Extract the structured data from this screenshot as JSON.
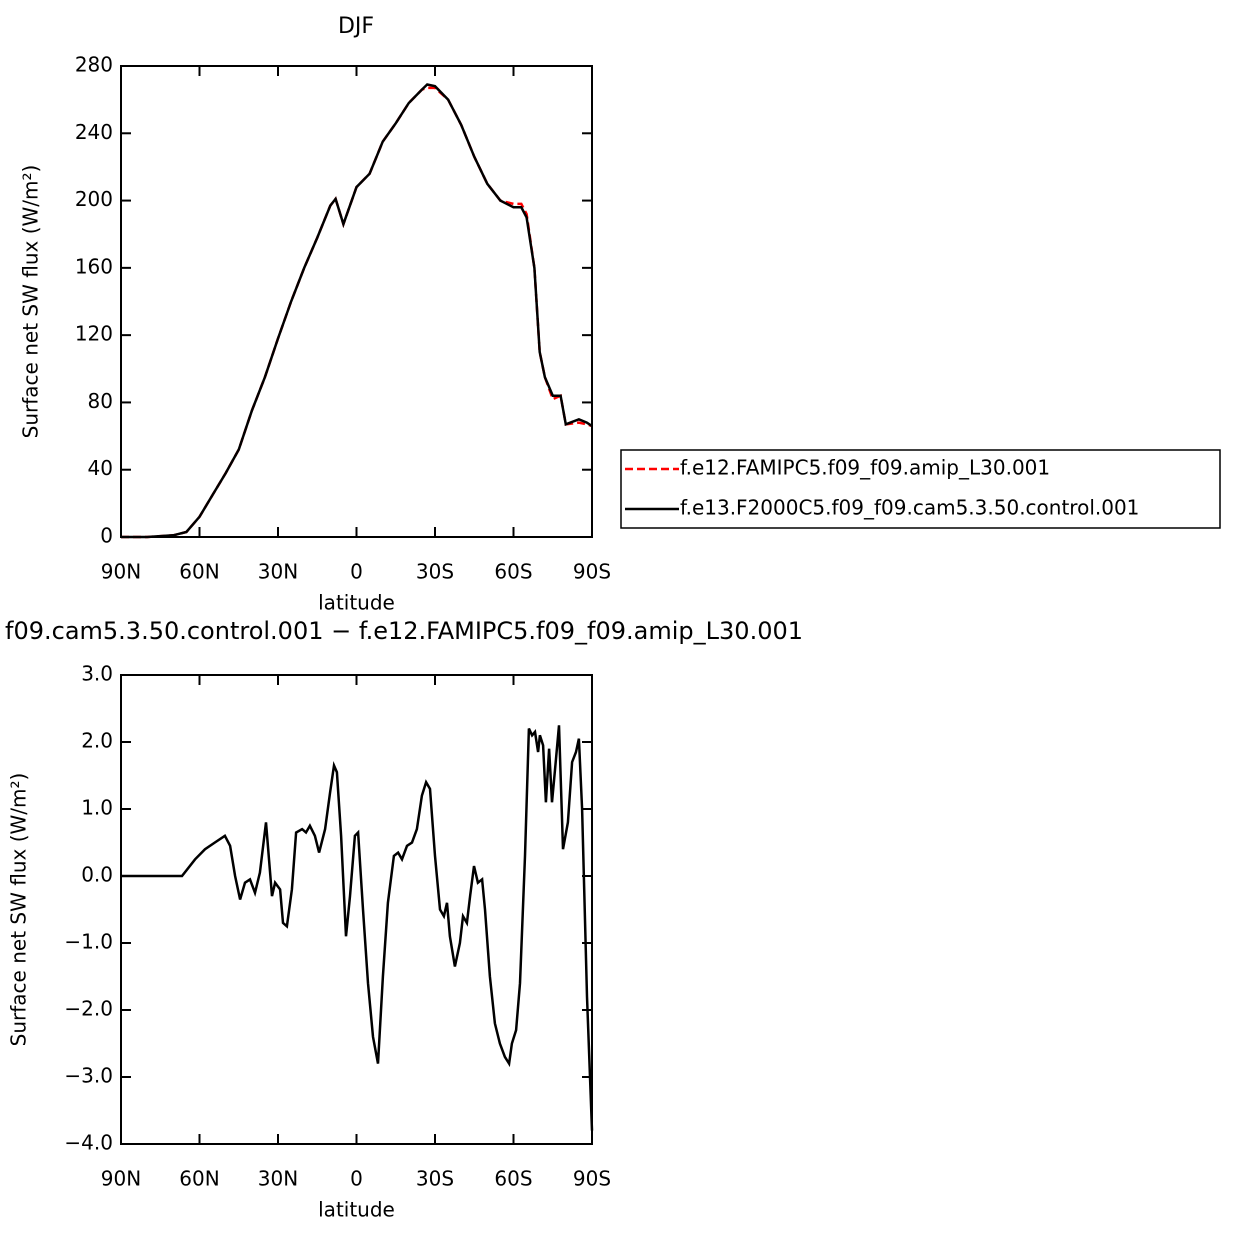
{
  "chart_data": [
    {
      "type": "line",
      "title": "DJF",
      "x_label": "latitude",
      "y_label": "Surface net SW flux (W/m²)",
      "x": [
        90,
        80,
        70,
        65,
        60,
        55,
        50,
        45,
        40,
        35,
        30,
        25,
        20,
        15,
        10,
        8,
        5,
        0,
        -5,
        -10,
        -15,
        -20,
        -25,
        -27,
        -30,
        -35,
        -40,
        -45,
        -50,
        -55,
        -60,
        -63,
        -65,
        -68,
        -70,
        -72,
        -75,
        -78,
        -80,
        -85,
        -88,
        -90
      ],
      "series": [
        {
          "name": "f.e12.FAMIPC5.f09_f09.amip_L30.001",
          "color": "#ff0000",
          "style": "dashed",
          "values": [
            0,
            0,
            1,
            3,
            12,
            25,
            38,
            52,
            75,
            95,
            118,
            140,
            160,
            178,
            197,
            201,
            186,
            208,
            216,
            235,
            246,
            258,
            266,
            267,
            267,
            260,
            245,
            226,
            210,
            200,
            198,
            198,
            192,
            160,
            110,
            95,
            82,
            84,
            67,
            68,
            67,
            66
          ]
        },
        {
          "name": "f.e13.F2000C5.f09_f09.cam5.3.50.control.001",
          "color": "#000000",
          "style": "solid",
          "values": [
            0,
            0,
            1,
            3,
            12,
            25,
            38,
            52,
            75,
            95,
            118,
            140,
            160,
            178,
            197,
            201,
            186,
            208,
            216,
            235,
            246,
            258,
            266,
            269,
            268,
            260,
            245,
            226,
            210,
            200,
            196,
            196,
            190,
            160,
            110,
            95,
            84,
            84,
            67,
            70,
            68,
            66
          ]
        }
      ],
      "xlim": [
        90,
        -90
      ],
      "xticks": [
        {
          "value": 90,
          "label": "90N"
        },
        {
          "value": 60,
          "label": "60N"
        },
        {
          "value": 30,
          "label": "30N"
        },
        0,
        {
          "value": -30,
          "label": "30S"
        },
        {
          "value": -60,
          "label": "60S"
        },
        {
          "value": -90,
          "label": "90S"
        }
      ],
      "ylim": [
        0,
        280
      ],
      "yticks": [
        0,
        40,
        80,
        120,
        160,
        200,
        240,
        280
      ],
      "legend": "right"
    },
    {
      "type": "line",
      "title": "f09.cam5.3.50.control.001 − f.e12.FAMIPC5.f09_f09.amip_L30.001",
      "x_label": "latitude",
      "y_label": "Surface net SW flux (W/m²)",
      "x": [
        90,
        80,
        70,
        66.7,
        61.7,
        57.9,
        54.1,
        50.3,
        48.3,
        46.4,
        44.5,
        42.6,
        40.7,
        38.8,
        36.9,
        34.6,
        32.3,
        31.1,
        29.2,
        28.1,
        26.6,
        24.7,
        23.1,
        20.8,
        19.3,
        17.8,
        15.9,
        14.3,
        12,
        10.1,
        8.6,
        7.5,
        5.9,
        4,
        2.5,
        0.6,
        -0.6,
        -2.5,
        -4.4,
        -6.3,
        -8.2,
        -10.1,
        -12,
        -14.3,
        -15.9,
        -17.4,
        -19.3,
        -21.2,
        -23.1,
        -25,
        -26.6,
        -28.1,
        -30,
        -31.9,
        -33.4,
        -34.6,
        -35.7,
        -37.6,
        -39.5,
        -40.7,
        -42.2,
        -43.4,
        -44.9,
        -46.4,
        -48,
        -49.1,
        -51,
        -52.9,
        -54.8,
        -56.7,
        -58.3,
        -59.4,
        -61,
        -62.5,
        -64.4,
        -65.9,
        -67.1,
        -68.2,
        -69.4,
        -70.1,
        -71.3,
        -72.4,
        -73.6,
        -74.7,
        -75.9,
        -77.4,
        -78.9,
        -80.8,
        -82.4,
        -83.9,
        -85,
        -86.2,
        -88.1,
        -90
      ],
      "series": [
        {
          "color": "#000000",
          "style": "solid",
          "values": [
            0,
            0,
            0,
            0,
            0.25,
            0.4,
            0.5,
            0.6,
            0.45,
            0,
            -0.35,
            -0.1,
            -0.05,
            -0.25,
            0.05,
            0.8,
            -0.3,
            -0.1,
            -0.2,
            -0.7,
            -0.75,
            -0.2,
            0.65,
            0.7,
            0.65,
            0.75,
            0.6,
            0.35,
            0.7,
            1.25,
            1.65,
            1.55,
            0.6,
            -0.9,
            -0.3,
            0.6,
            0.65,
            -0.5,
            -1.6,
            -2.4,
            -2.8,
            -1.5,
            -0.4,
            0.3,
            0.35,
            0.25,
            0.45,
            0.5,
            0.7,
            1.2,
            1.4,
            1.3,
            0.3,
            -0.5,
            -0.6,
            -0.4,
            -0.9,
            -1.35,
            -1.0,
            -0.6,
            -0.7,
            -0.3,
            0.15,
            -0.1,
            -0.05,
            -0.5,
            -1.5,
            -2.2,
            -2.5,
            -2.7,
            -2.8,
            -2.5,
            -2.3,
            -1.6,
            0.3,
            2.2,
            2.1,
            2.15,
            1.85,
            2.1,
            1.95,
            1.1,
            1.9,
            1.1,
            1.6,
            2.25,
            0.4,
            0.8,
            1.7,
            1.85,
            2.05,
            1.0,
            -1.8,
            -3.8
          ]
        }
      ],
      "xlim": [
        90,
        -90
      ],
      "xticks": [
        {
          "value": 90,
          "label": "90N"
        },
        {
          "value": 60,
          "label": "60N"
        },
        {
          "value": 30,
          "label": "30N"
        },
        0,
        {
          "value": -30,
          "label": "30S"
        },
        {
          "value": -60,
          "label": "60S"
        },
        {
          "value": -90,
          "label": "90S"
        }
      ],
      "ylim": [
        -4,
        3
      ],
      "yticks": [
        {
          "value": -4,
          "label": "−4.0"
        },
        {
          "value": -3,
          "label": "−3.0"
        },
        {
          "value": -2,
          "label": "−2.0"
        },
        {
          "value": -1,
          "label": "−1.0"
        },
        {
          "value": 0,
          "label": "0.0"
        },
        {
          "value": 1,
          "label": "1.0"
        },
        {
          "value": 2,
          "label": "2.0"
        },
        {
          "value": 3,
          "label": "3.0"
        }
      ]
    }
  ]
}
